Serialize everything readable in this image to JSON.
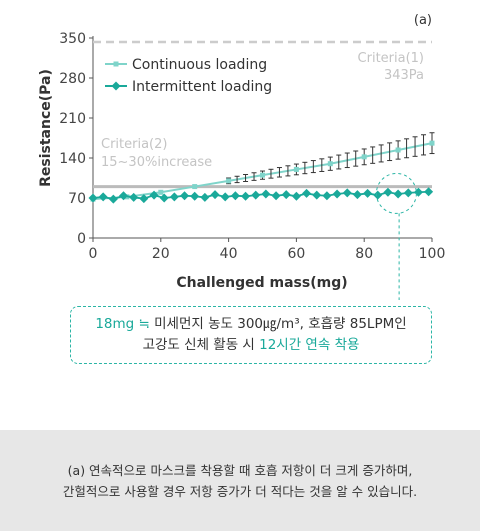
{
  "chart_data": {
    "type": "scatter",
    "panel_label": "(a)",
    "xlabel": "Challenged mass(mg)",
    "ylabel": "Resistance(Pa)",
    "xlim": [
      0,
      100
    ],
    "ylim": [
      0,
      350
    ],
    "x_ticks": [
      "0",
      "20",
      "40",
      "60",
      "80",
      "100"
    ],
    "y_ticks": [
      "0",
      "70",
      "140",
      "210",
      "280",
      "350"
    ],
    "legend": {
      "position": "top-left"
    },
    "series": [
      {
        "name": "Continuous loading",
        "color": "#7fd4ca",
        "marker": "square",
        "line": "solid",
        "error_bars": true,
        "x": [
          0,
          10,
          20,
          30,
          40,
          50,
          60,
          70,
          80,
          90,
          100
        ],
        "y": [
          68,
          72,
          80,
          90,
          100,
          110,
          120,
          130,
          142,
          154,
          166
        ]
      },
      {
        "name": "Intermittent loading",
        "color": "#1aa99a",
        "marker": "diamond",
        "line": "solid",
        "x": [
          0,
          3,
          6,
          9,
          12,
          15,
          18,
          21,
          24,
          27,
          30,
          33,
          36,
          39,
          42,
          45,
          48,
          51,
          54,
          57,
          60,
          63,
          66,
          69,
          72,
          75,
          78,
          81,
          84,
          87,
          90,
          93,
          96,
          99
        ],
        "y": [
          70,
          72,
          68,
          74,
          71,
          69,
          75,
          70,
          72,
          74,
          73,
          71,
          76,
          72,
          74,
          73,
          75,
          77,
          74,
          76,
          73,
          78,
          75,
          74,
          77,
          79,
          76,
          78,
          75,
          80,
          77,
          79,
          80,
          81
        ]
      }
    ],
    "reference_lines": [
      {
        "label": "Criteria(1)",
        "value_label": "343Pa",
        "y": 343,
        "color": "#cccccc",
        "style": "dashed"
      },
      {
        "label": "Criteria(2)",
        "value_label": "15~30%increase",
        "y": 90,
        "color": "#bbbbbb",
        "style": "solid"
      }
    ]
  },
  "callout": {
    "line1_highlight": "18mg ≒",
    "line1_rest": " 미세먼지 농도 300㎍/m³,  호흡량 85LPM인",
    "line2_prefix": "고강도 신체 활동 시 ",
    "line2_highlight": "12시간 연속 착용"
  },
  "footer": {
    "line1": "(a) 연속적으로 마스크를 착용할 때 호흡 저항이 더 크게 증가하며,",
    "line2": "간헐적으로 사용할 경우 저항 증가가 더 적다는 것을 알 수 있습니다."
  }
}
